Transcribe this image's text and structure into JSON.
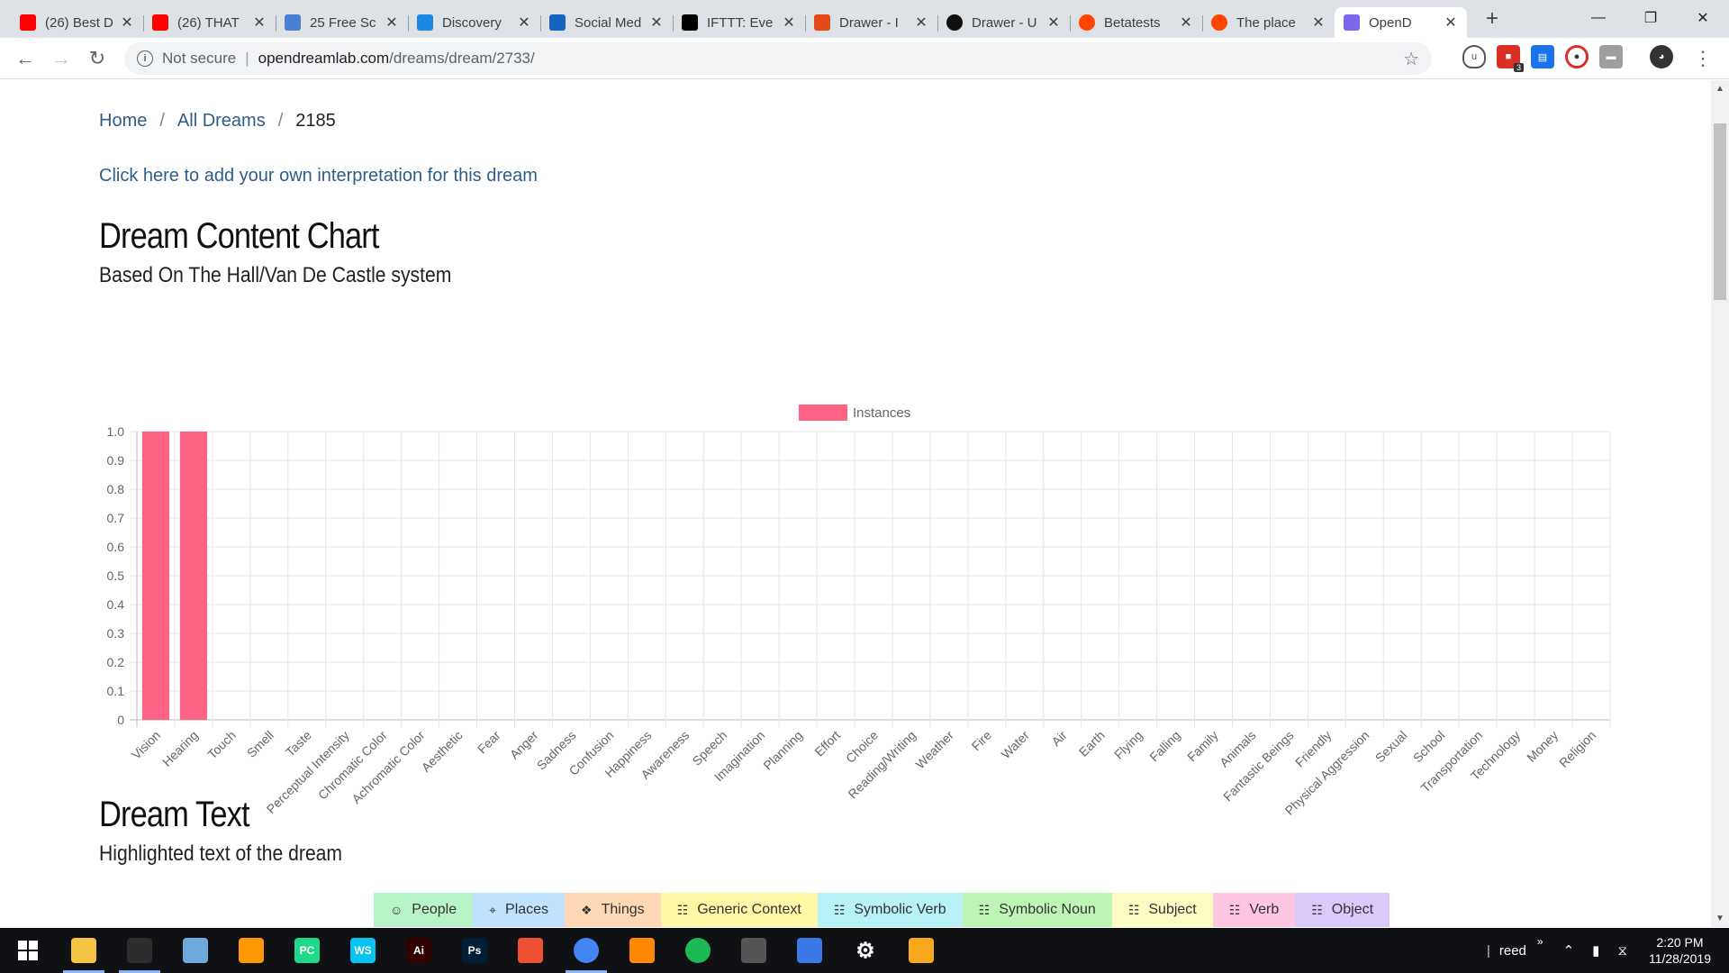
{
  "browser": {
    "tabs": [
      {
        "title": "(26) Best D",
        "favicon_color": "#ff0000",
        "favicon": "youtube-icon"
      },
      {
        "title": "(26) THAT",
        "favicon_color": "#ff0000",
        "favicon": "youtube-icon"
      },
      {
        "title": "25 Free Sc",
        "favicon_color": "#4a7fd1",
        "favicon": "character-icon"
      },
      {
        "title": "Discovery",
        "favicon_color": "#1e88e5",
        "favicon": "discovery-icon"
      },
      {
        "title": "Social Med",
        "favicon_color": "#1565c0",
        "favicon": "v-logo-icon"
      },
      {
        "title": "IFTTT: Eve",
        "favicon_color": "#000000",
        "favicon": "ifttt-icon"
      },
      {
        "title": "Drawer - I",
        "favicon_color": "#e64a19",
        "favicon": "p-logo-icon"
      },
      {
        "title": "Drawer - U",
        "favicon_color": "#111111",
        "favicon": "d-logo-icon"
      },
      {
        "title": "Betatests",
        "favicon_color": "#ff4500",
        "favicon": "reddit-icon"
      },
      {
        "title": "The place",
        "favicon_color": "#ff4500",
        "favicon": "reddit-icon"
      },
      {
        "title": "OpenD",
        "favicon_color": "#7b68ee",
        "favicon": "opendreamlab-icon",
        "active": true
      }
    ],
    "address": {
      "security": "Not secure",
      "host": "opendreamlab.com",
      "path": "/dreams/dream/2733/"
    },
    "extension_badge": "3"
  },
  "page": {
    "breadcrumb": {
      "home": "Home",
      "all": "All Dreams",
      "current": "2185"
    },
    "add_interpretation": "Click here to add your own interpretation for this dream",
    "chart_section": {
      "title": "Dream Content Chart",
      "subtitle": "Based On The Hall/Van De Castle system"
    },
    "text_section": {
      "title": "Dream Text",
      "subtitle": "Highlighted text of the dream"
    },
    "legend_chips": [
      {
        "label": "People",
        "icon": "person-icon",
        "color": "#b7f5c8"
      },
      {
        "label": "Places",
        "icon": "map-pin-icon",
        "color": "#bfe3ff"
      },
      {
        "label": "Things",
        "icon": "cubes-icon",
        "color": "#ffd8b5"
      },
      {
        "label": "Generic Context",
        "icon": "document-icon",
        "color": "#fdf7a6"
      },
      {
        "label": "Symbolic Verb",
        "icon": "document-icon",
        "color": "#b8f2f7"
      },
      {
        "label": "Symbolic Noun",
        "icon": "document-icon",
        "color": "#bdf5b5"
      },
      {
        "label": "Subject",
        "icon": "document-icon",
        "color": "#fbfbc2"
      },
      {
        "label": "Verb",
        "icon": "document-icon",
        "color": "#ffc6e4"
      },
      {
        "label": "Object",
        "icon": "document-icon",
        "color": "#dcc9fb"
      }
    ]
  },
  "chart_data": {
    "type": "bar",
    "title": "",
    "legend": [
      {
        "name": "Instances",
        "color": "#ff6384"
      }
    ],
    "legend_position": "top",
    "grid": true,
    "ylim": [
      0,
      1
    ],
    "yticks": [
      "0",
      "0.1",
      "0.2",
      "0.3",
      "0.4",
      "0.5",
      "0.6",
      "0.7",
      "0.8",
      "0.9",
      "1.0"
    ],
    "categories": [
      "Vision",
      "Hearing",
      "Touch",
      "Smell",
      "Taste",
      "Perceptual Intensity",
      "Chromatic Color",
      "Achromatic Color",
      "Aesthetic",
      "Fear",
      "Anger",
      "Sadness",
      "Confusion",
      "Happiness",
      "Awareness",
      "Speech",
      "Imagination",
      "Planning",
      "Effort",
      "Choice",
      "Reading/Writing",
      "Weather",
      "Fire",
      "Water",
      "Air",
      "Earth",
      "Flying",
      "Falling",
      "Family",
      "Animals",
      "Fantastic Beings",
      "Friendly",
      "Physical Aggression",
      "Sexual",
      "School",
      "Transportation",
      "Technology",
      "Money",
      "Religion"
    ],
    "series": [
      {
        "name": "Instances",
        "values": [
          1,
          1,
          0,
          0,
          0,
          0,
          0,
          0,
          0,
          0,
          0,
          0,
          0,
          0,
          0,
          0,
          0,
          0,
          0,
          0,
          0,
          0,
          0,
          0,
          0,
          0,
          0,
          0,
          0,
          0,
          0,
          0,
          0,
          0,
          0,
          0,
          0,
          0,
          0
        ]
      }
    ]
  },
  "taskbar": {
    "apps": [
      {
        "name": "file-explorer-icon",
        "color": "#f4c542",
        "open": true
      },
      {
        "name": "terminal-icon",
        "color": "#2d2d2d",
        "open": true
      },
      {
        "name": "notepad-icon",
        "color": "#6fa8dc",
        "open": false
      },
      {
        "name": "sublime-icon",
        "color": "#ff9800",
        "open": false
      },
      {
        "name": "pycharm-icon",
        "color": "#21d789",
        "label": "PC",
        "open": false
      },
      {
        "name": "webstorm-icon",
        "color": "#07c3f2",
        "label": "WS",
        "open": false
      },
      {
        "name": "illustrator-icon",
        "color": "#330000",
        "label": "Ai",
        "open": false
      },
      {
        "name": "photoshop-icon",
        "color": "#001e36",
        "label": "Ps",
        "open": false
      },
      {
        "name": "git-icon",
        "color": "#f05032",
        "open": false
      },
      {
        "name": "chrome-icon",
        "color": "#4285f4",
        "open": true
      },
      {
        "name": "vlc-icon",
        "color": "#ff8800",
        "open": false
      },
      {
        "name": "loader-icon",
        "color": "#1db954",
        "open": false
      },
      {
        "name": "console-icon",
        "color": "#555555",
        "open": false
      },
      {
        "name": "network-icon",
        "color": "#3b78e7",
        "open": false
      },
      {
        "name": "settings-icon",
        "color": "#ffffff",
        "open": false
      },
      {
        "name": "fl-studio-icon",
        "color": "#f7a81b",
        "open": false
      }
    ],
    "user": "reed",
    "time": "2:20 PM",
    "date": "11/28/2019"
  }
}
